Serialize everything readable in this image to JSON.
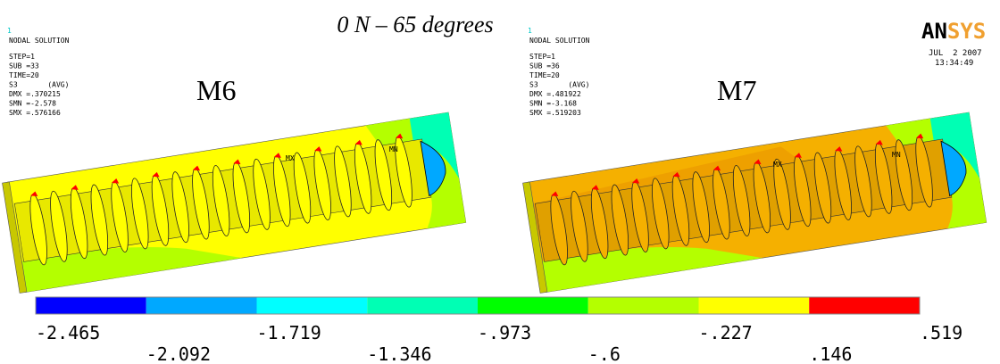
{
  "title": "0 N – 65 degrees",
  "logo": {
    "part1": "AN",
    "part2": "SYS"
  },
  "date": "JUL  2 2007",
  "time": "13:34:49",
  "panels": [
    {
      "number": "1",
      "heading": "NODAL SOLUTION",
      "info": [
        "STEP=1",
        "SUB =33",
        "TIME=20",
        "S3       (AVG)",
        "DMX =.370215",
        "SMN =-2.578",
        "SMX =.576166"
      ],
      "label": "M6",
      "max_marker": "MX",
      "min_marker": "MN"
    },
    {
      "number": "1",
      "heading": "NODAL SOLUTION",
      "info": [
        "STEP=1",
        "SUB =36",
        "TIME=20",
        "S3       (AVG)",
        "DMX =.481922",
        "SMN =-3.168",
        "SMX =.519203"
      ],
      "label": "M7",
      "max_marker": "MX",
      "min_marker": "MN"
    }
  ],
  "legend": {
    "labels": [
      "-2.465",
      "-2.092",
      "-1.719",
      "-1.346",
      "-.973",
      "-.6",
      "-.227",
      ".146",
      ".519"
    ],
    "colors": [
      "#0000ff",
      "#00a8ff",
      "#00ffff",
      "#00ffb4",
      "#00ff00",
      "#b4ff00",
      "#ffff00",
      "#ff0000"
    ]
  }
}
